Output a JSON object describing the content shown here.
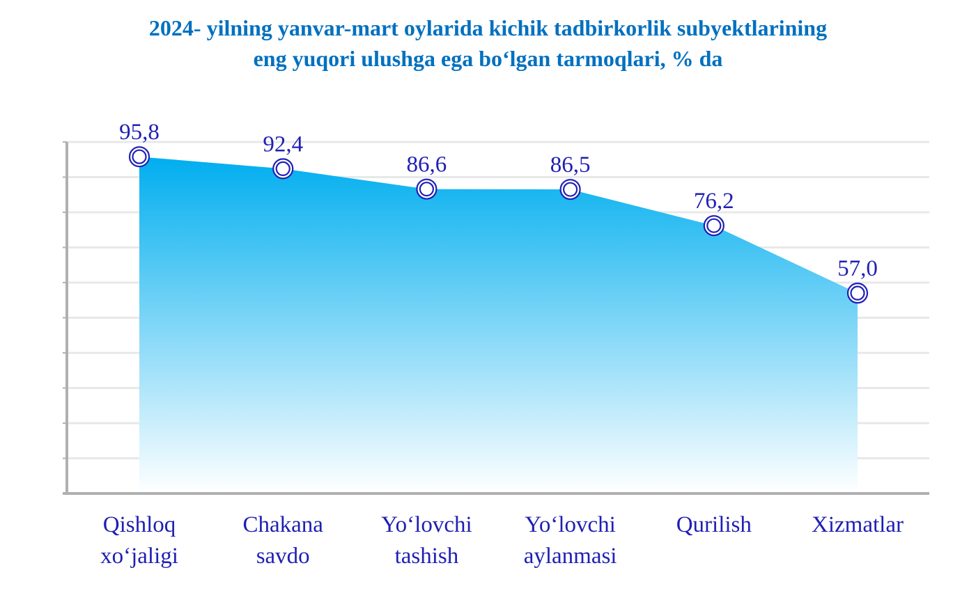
{
  "title": {
    "line1": "2024- yilning yanvar-mart oylarida kichik tadbirkorlik subyektlarining",
    "line2": "eng yuqori ulushga ega bo‘lgan tarmoqlari, % da"
  },
  "colors": {
    "title": "#0070c0",
    "labels": "#1f1fb4",
    "area_top": "#00aeef",
    "area_bottom": "#ffffff",
    "marker": "#1f1fb4",
    "grid": "#e8e8e8",
    "axis": "#b0b0b0"
  },
  "chart_data": {
    "type": "area",
    "categories": [
      [
        "Qishloq",
        "xo‘jaligi"
      ],
      [
        "Chakana",
        "savdo"
      ],
      [
        "Yo‘lovchi",
        "tashish"
      ],
      [
        "Yo‘lovchi",
        "aylanmasi"
      ],
      [
        "Qurilish"
      ],
      [
        "Xizmatlar"
      ]
    ],
    "values": [
      95.8,
      92.4,
      86.6,
      86.5,
      76.2,
      57.0
    ],
    "value_labels": [
      "95,8",
      "92,4",
      "86,6",
      "86,5",
      "76,2",
      "57,0"
    ],
    "ylim": [
      0,
      100
    ],
    "grid": true,
    "legend": "none",
    "xlabel": "",
    "ylabel": ""
  }
}
